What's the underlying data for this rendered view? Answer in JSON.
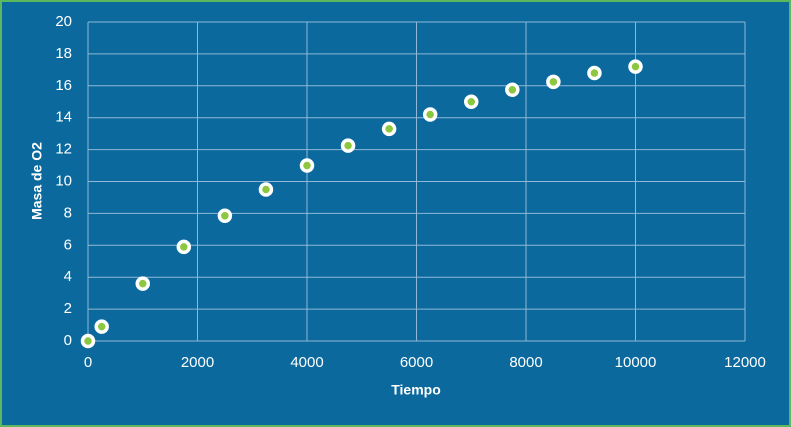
{
  "chart_data": {
    "type": "scatter",
    "x": [
      0,
      250,
      1000,
      1750,
      2500,
      3250,
      4000,
      4750,
      5500,
      6250,
      7000,
      7750,
      8500,
      9250,
      10000
    ],
    "values": [
      0,
      0.9,
      3.6,
      5.9,
      7.85,
      9.5,
      11,
      12.25,
      13.3,
      14.2,
      15,
      15.75,
      16.25,
      16.8,
      17.2
    ],
    "color": "#8dc63f",
    "xlabel": "Tiempo",
    "ylabel": "Masa de O2",
    "xlim": [
      0,
      12000
    ],
    "xticks": [
      0,
      2000,
      4000,
      6000,
      8000,
      10000,
      12000
    ],
    "ylim": [
      0,
      20
    ],
    "yticks": [
      0,
      2,
      4,
      6,
      8,
      10,
      12,
      14,
      16,
      18,
      20
    ],
    "grid": true
  }
}
